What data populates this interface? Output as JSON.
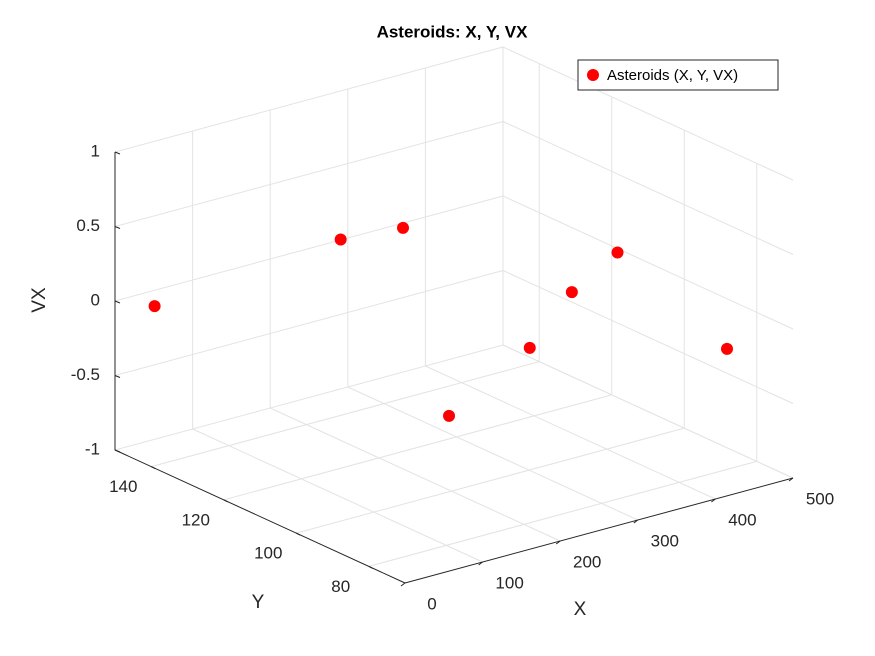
{
  "chart_data": {
    "type": "scatter3d",
    "title": "Asteroids: X, Y, VX",
    "xlabel": "X",
    "ylabel": "Y",
    "zlabel": "VX",
    "series": [
      {
        "name": "Asteroids (X, Y, VX)",
        "color": "#ff0000",
        "x": [
          23,
          160,
          231,
          414,
          386,
          385,
          464,
          252
        ],
        "y": [
          144,
          122,
          120,
          100,
          106.6,
          118,
          80.5,
          111.8
        ],
        "z": [
          0,
          0.5,
          0.5,
          0.3,
          0,
          -0.5,
          -0.2,
          -0.7
        ]
      }
    ],
    "xlim": [
      0,
      500
    ],
    "ylim": [
      70,
      150
    ],
    "zlim": [
      -1,
      1
    ],
    "xticks": [
      0,
      100,
      200,
      300,
      400,
      500
    ],
    "yticks": [
      80,
      100,
      120,
      140
    ],
    "zticks": [
      -1,
      -0.5,
      0,
      0.5,
      1
    ],
    "grid": true,
    "legend": "northeast"
  }
}
